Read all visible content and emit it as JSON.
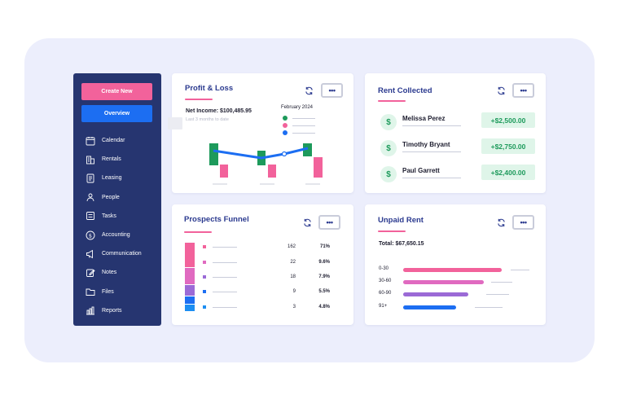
{
  "sidebar": {
    "create_label": "Create New",
    "overview_label": "Overview",
    "items": [
      {
        "label": "Calendar",
        "icon": "calendar-icon"
      },
      {
        "label": "Rentals",
        "icon": "building-icon"
      },
      {
        "label": "Leasing",
        "icon": "document-icon"
      },
      {
        "label": "People",
        "icon": "people-icon"
      },
      {
        "label": "Tasks",
        "icon": "tasks-icon"
      },
      {
        "label": "Accounting",
        "icon": "dollar-circle-icon"
      },
      {
        "label": "Communication",
        "icon": "megaphone-icon"
      },
      {
        "label": "Notes",
        "icon": "edit-icon"
      },
      {
        "label": "Files",
        "icon": "folder-icon"
      },
      {
        "label": "Reports",
        "icon": "chart-icon"
      }
    ]
  },
  "profit_loss": {
    "title": "Profit & Loss",
    "net_income": "Net Income: $100,485.95",
    "range": "Last 3 months to date",
    "month": "February 2024",
    "legend_colors": [
      "#1d9a5b",
      "#f2629b",
      "#1c6ef2"
    ]
  },
  "rent_collected": {
    "title": "Rent Collected",
    "rows": [
      {
        "name": "Melissa Perez",
        "amount": "+$2,500.00"
      },
      {
        "name": "Timothy Bryant",
        "amount": "+$2,750.00"
      },
      {
        "name": "Paul Garrett",
        "amount": "+$2,400.00"
      }
    ]
  },
  "prospects_funnel": {
    "title": "Prospects Funnel",
    "rows": [
      {
        "count": "162",
        "pct": "71%",
        "color": "#f2629b"
      },
      {
        "count": "22",
        "pct": "9.6%",
        "color": "#e06ac0"
      },
      {
        "count": "18",
        "pct": "7.9%",
        "color": "#9b6ad6"
      },
      {
        "count": "9",
        "pct": "5.5%",
        "color": "#1c6ef2"
      },
      {
        "count": "3",
        "pct": "4.8%",
        "color": "#1c8ef2"
      }
    ]
  },
  "unpaid_rent": {
    "title": "Unpaid Rent",
    "total": "Total: $67,650.15",
    "rows": [
      {
        "label": "0-30",
        "fraction": 0.82,
        "color": "#f2629b"
      },
      {
        "label": "30-60",
        "fraction": 0.67,
        "color": "#e06ac0"
      },
      {
        "label": "60-90",
        "fraction": 0.54,
        "color": "#9b6ad6"
      },
      {
        "label": "91+",
        "fraction": 0.44,
        "color": "#1c6ef2"
      }
    ]
  },
  "common": {
    "more_label": "•••"
  }
}
